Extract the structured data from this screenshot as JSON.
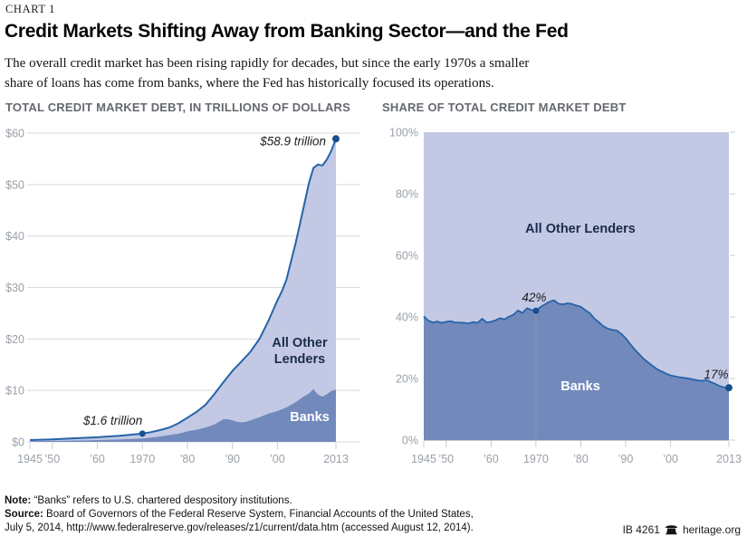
{
  "header": {
    "kicker": "CHART 1",
    "title": "Credit Markets Shifting Away from Banking Sector—and the Fed",
    "subtitle_line1": "The overall credit market has been rising rapidly for decades, but since the early 1970s a smaller",
    "subtitle_line2": "share of loans has come from banks, where the Fed has historically focused its operations."
  },
  "colors": {
    "light_fill": "#c3c9e4",
    "dark_fill": "#7289bc",
    "line": "#2663a8",
    "dot": "#174e8d",
    "grid": "#d8dade",
    "tick": "#c9ccd2",
    "baseline": "#c2c5cc",
    "ref_line": "#8f949c"
  },
  "chart_data": [
    {
      "type": "area",
      "title": "TOTAL CREDIT MARKET DEBT, IN TRILLIONS OF DOLLARS",
      "stacked": true,
      "xlim": [
        1945,
        2013
      ],
      "ylim": [
        0,
        60
      ],
      "yticks": [
        {
          "v": 0,
          "label": "$0"
        },
        {
          "v": 10,
          "label": "$10"
        },
        {
          "v": 20,
          "label": "$20"
        },
        {
          "v": 30,
          "label": "$30"
        },
        {
          "v": 40,
          "label": "$40"
        },
        {
          "v": 50,
          "label": "$50"
        },
        {
          "v": 60,
          "label": "$60"
        }
      ],
      "xticks": [
        {
          "v": 1945,
          "label": "1945"
        },
        {
          "v": 1950,
          "label": "’50"
        },
        {
          "v": 1960,
          "label": "’60"
        },
        {
          "v": 1970,
          "label": "1970"
        },
        {
          "v": 1980,
          "label": "’80"
        },
        {
          "v": 1990,
          "label": "’90"
        },
        {
          "v": 2000,
          "label": "’00"
        },
        {
          "v": 2013,
          "label": "2013"
        }
      ],
      "series": [
        {
          "name": "Banks",
          "role": "banks",
          "points": [
            [
              1945,
              0.14
            ],
            [
              1950,
              0.19
            ],
            [
              1955,
              0.27
            ],
            [
              1960,
              0.35
            ],
            [
              1965,
              0.49
            ],
            [
              1970,
              0.67
            ],
            [
              1974,
              1.05
            ],
            [
              1978,
              1.6
            ],
            [
              1980,
              2.05
            ],
            [
              1982,
              2.35
            ],
            [
              1984,
              2.8
            ],
            [
              1986,
              3.4
            ],
            [
              1987,
              3.9
            ],
            [
              1988,
              4.4
            ],
            [
              1989,
              4.4
            ],
            [
              1990,
              4.2
            ],
            [
              1991,
              3.9
            ],
            [
              1992,
              3.8
            ],
            [
              1993,
              3.9
            ],
            [
              1994,
              4.2
            ],
            [
              1996,
              4.8
            ],
            [
              1998,
              5.5
            ],
            [
              2000,
              6.0
            ],
            [
              2002,
              6.7
            ],
            [
              2004,
              7.7
            ],
            [
              2005,
              8.3
            ],
            [
              2006,
              8.9
            ],
            [
              2007,
              9.4
            ],
            [
              2008,
              10.3
            ],
            [
              2009,
              9.2
            ],
            [
              2010,
              8.8
            ],
            [
              2011,
              9.3
            ],
            [
              2012,
              9.9
            ],
            [
              2013,
              10.2
            ]
          ]
        },
        {
          "name": "Total (Banks + All Other Lenders)",
          "role": "total",
          "points": [
            [
              1945,
              0.35
            ],
            [
              1950,
              0.5
            ],
            [
              1955,
              0.7
            ],
            [
              1960,
              0.9
            ],
            [
              1965,
              1.2
            ],
            [
              1970,
              1.6
            ],
            [
              1972,
              1.9
            ],
            [
              1974,
              2.3
            ],
            [
              1976,
              2.8
            ],
            [
              1978,
              3.6
            ],
            [
              1980,
              4.7
            ],
            [
              1982,
              5.8
            ],
            [
              1984,
              7.2
            ],
            [
              1986,
              9.3
            ],
            [
              1988,
              11.6
            ],
            [
              1990,
              13.8
            ],
            [
              1992,
              15.6
            ],
            [
              1994,
              17.5
            ],
            [
              1996,
              20.0
            ],
            [
              1998,
              23.5
            ],
            [
              2000,
              27.5
            ],
            [
              2001,
              29.3
            ],
            [
              2002,
              31.5
            ],
            [
              2003,
              35.0
            ],
            [
              2004,
              38.5
            ],
            [
              2005,
              42.3
            ],
            [
              2006,
              46.3
            ],
            [
              2007,
              50.3
            ],
            [
              2008,
              53.2
            ],
            [
              2009,
              53.9
            ],
            [
              2010,
              53.7
            ],
            [
              2011,
              54.9
            ],
            [
              2012,
              56.6
            ],
            [
              2013,
              58.9
            ]
          ]
        }
      ],
      "area_labels": [
        {
          "target": "All Other Lenders",
          "lines": [
            "All Other",
            "Lenders"
          ]
        },
        {
          "target": "Banks",
          "lines": [
            "Banks"
          ]
        }
      ],
      "annotations": [
        {
          "x": 1970,
          "y": 1.6,
          "label": "$1.6 trillion"
        },
        {
          "x": 2013,
          "y": 58.9,
          "label": "$58.9 trillion"
        }
      ]
    },
    {
      "type": "area",
      "title": "SHARE OF TOTAL CREDIT MARKET DEBT",
      "stacked": true,
      "xlim": [
        1945,
        2013
      ],
      "ylim": [
        0,
        100
      ],
      "yticks": [
        {
          "v": 0,
          "label": "0%"
        },
        {
          "v": 20,
          "label": "20%"
        },
        {
          "v": 40,
          "label": "40%"
        },
        {
          "v": 60,
          "label": "60%"
        },
        {
          "v": 80,
          "label": "80%"
        },
        {
          "v": 100,
          "label": "100%"
        }
      ],
      "xticks": [
        {
          "v": 1945,
          "label": "1945"
        },
        {
          "v": 1950,
          "label": "’50"
        },
        {
          "v": 1960,
          "label": "’60"
        },
        {
          "v": 1970,
          "label": "1970"
        },
        {
          "v": 1980,
          "label": "’80"
        },
        {
          "v": 1990,
          "label": "’90"
        },
        {
          "v": 2000,
          "label": "’00"
        },
        {
          "v": 2013,
          "label": "2013"
        }
      ],
      "series": [
        {
          "name": "Banks",
          "role": "banks-share",
          "points": [
            [
              1945,
              40.2
            ],
            [
              1946,
              38.8
            ],
            [
              1947,
              38.2
            ],
            [
              1948,
              38.5
            ],
            [
              1949,
              38.1
            ],
            [
              1950,
              38.4
            ],
            [
              1951,
              38.6
            ],
            [
              1952,
              38.2
            ],
            [
              1954,
              38.1
            ],
            [
              1955,
              37.9
            ],
            [
              1956,
              38.3
            ],
            [
              1957,
              38.1
            ],
            [
              1958,
              39.4
            ],
            [
              1959,
              38.2
            ],
            [
              1960,
              38.4
            ],
            [
              1961,
              38.9
            ],
            [
              1962,
              39.6
            ],
            [
              1963,
              39.2
            ],
            [
              1964,
              40.1
            ],
            [
              1965,
              40.7
            ],
            [
              1966,
              42.1
            ],
            [
              1967,
              41.3
            ],
            [
              1968,
              42.8
            ],
            [
              1969,
              42.3
            ],
            [
              1970,
              42.0
            ],
            [
              1971,
              43.2
            ],
            [
              1972,
              44.1
            ],
            [
              1973,
              44.9
            ],
            [
              1974,
              45.4
            ],
            [
              1975,
              44.3
            ],
            [
              1976,
              44.1
            ],
            [
              1977,
              44.4
            ],
            [
              1978,
              44.2
            ],
            [
              1979,
              43.7
            ],
            [
              1980,
              43.3
            ],
            [
              1981,
              42.2
            ],
            [
              1982,
              41.2
            ],
            [
              1983,
              39.5
            ],
            [
              1984,
              38.3
            ],
            [
              1985,
              37.0
            ],
            [
              1986,
              36.2
            ],
            [
              1987,
              35.8
            ],
            [
              1988,
              35.6
            ],
            [
              1989,
              34.5
            ],
            [
              1990,
              33.1
            ],
            [
              1991,
              31.2
            ],
            [
              1992,
              29.4
            ],
            [
              1993,
              27.9
            ],
            [
              1994,
              26.4
            ],
            [
              1995,
              25.2
            ],
            [
              1996,
              24.1
            ],
            [
              1997,
              23.0
            ],
            [
              1998,
              22.3
            ],
            [
              1999,
              21.6
            ],
            [
              2000,
              21.0
            ],
            [
              2001,
              20.7
            ],
            [
              2002,
              20.4
            ],
            [
              2003,
              20.2
            ],
            [
              2004,
              20.0
            ],
            [
              2005,
              19.7
            ],
            [
              2006,
              19.4
            ],
            [
              2007,
              19.2
            ],
            [
              2008,
              19.6
            ],
            [
              2009,
              18.8
            ],
            [
              2010,
              18.2
            ],
            [
              2011,
              17.5
            ],
            [
              2012,
              17.1
            ],
            [
              2013,
              17.0
            ]
          ]
        },
        {
          "name": "All Other Lenders",
          "role": "remainder-to-100"
        }
      ],
      "area_labels": [
        {
          "target": "All Other Lenders",
          "lines": [
            "All Other Lenders"
          ]
        },
        {
          "target": "Banks",
          "lines": [
            "Banks"
          ]
        }
      ],
      "annotations": [
        {
          "x": 1970,
          "y": 42,
          "label": "42%"
        },
        {
          "x": 2013,
          "y": 17,
          "label": "17%"
        }
      ]
    }
  ],
  "footer": {
    "note_label": "Note:",
    "note_text": " “Banks” refers to U.S. chartered despository institutions.",
    "source_label": "Source:",
    "source_line1": " Board of Governors of the Federal Reserve System, Financial Accounts of the United States,",
    "source_line2": "July 5, 2014, http://www.federalreserve.gov/releases/z1/current/data.htm (accessed August 12, 2014).",
    "report_id": "IB 4261",
    "bell_icon": "liberty-bell-icon",
    "brand": "heritage.org"
  }
}
